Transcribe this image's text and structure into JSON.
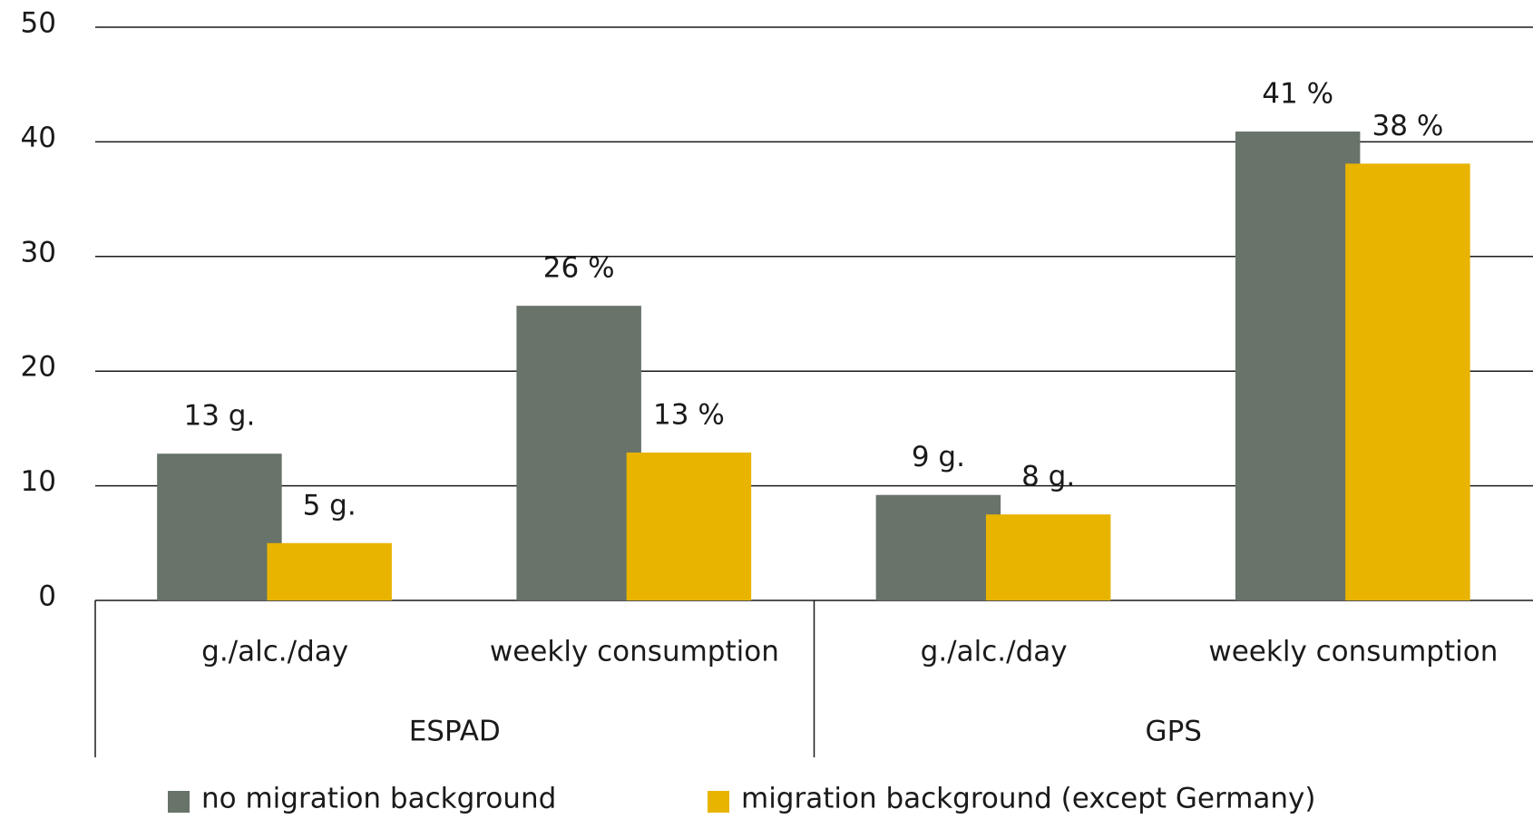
{
  "chart_data": {
    "type": "bar",
    "categories": [
      "g./alc./day",
      "weekly consumption",
      "g./alc./day",
      "weekly consumption"
    ],
    "groups": [
      "ESPAD",
      "GPS"
    ],
    "series": [
      {
        "name": "no migration background",
        "color": "#68736a",
        "values": [
          12.8,
          25.7,
          9.2,
          40.9
        ],
        "value_labels": [
          "13 g.",
          "26 %",
          "9 g.",
          "41 %"
        ]
      },
      {
        "name": "migration background (except Germany)",
        "color": "#e8b400",
        "values": [
          5,
          12.9,
          7.5,
          38.1
        ],
        "value_labels": [
          "5 g.",
          "13 %",
          "8 g.",
          "38 %"
        ]
      }
    ],
    "ylim": [
      0,
      50
    ],
    "yticks": [
      0,
      10,
      20,
      30,
      40,
      50
    ],
    "grid": true
  }
}
